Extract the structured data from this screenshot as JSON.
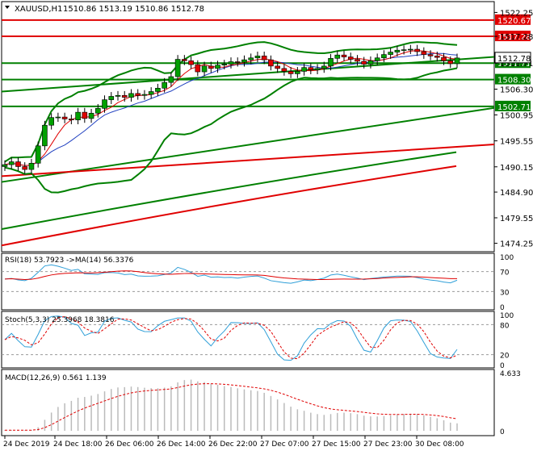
{
  "chart_data": [
    {
      "type": "candlestick",
      "title": "XAUUSD,H1",
      "ohlc_label": "1510.86 1513.19 1510.86 1512.78",
      "ylim": [
        1472.5,
        1524.5
      ],
      "y_ticks": [
        "1522.25",
        "1517.28",
        "1511.71",
        "1506.30",
        "1500.95",
        "1495.55",
        "1490.15",
        "1484.90",
        "1479.55",
        "1474.25"
      ],
      "x_labels": [
        "24 Dec 2019",
        "24 Dec 18:00",
        "26 Dec 06:00",
        "26 Dec 14:00",
        "26 Dec 22:00",
        "27 Dec 07:00",
        "27 Dec 15:00",
        "27 Dec 23:00",
        "30 Dec 08:00"
      ],
      "horizontal_levels": [
        {
          "value": 1520.67,
          "label": "1520.67",
          "color": "#e00000"
        },
        {
          "value": 1517.28,
          "label": "1517.28",
          "color": "#e00000"
        },
        {
          "value": 1511.71,
          "label": "1511.71",
          "color": "#008000"
        },
        {
          "value": 1508.3,
          "label": "1508.30",
          "color": "#008000"
        },
        {
          "value": 1502.71,
          "label": "1502.71",
          "color": "#008000"
        }
      ],
      "current_price": "1512.78",
      "closes": [
        1490.6,
        1491.2,
        1490.2,
        1489.6,
        1490.9,
        1494.5,
        1498.8,
        1500.4,
        1500.5,
        1500.1,
        1499.9,
        1501.5,
        1500.2,
        1501.3,
        1502.3,
        1504.1,
        1504.8,
        1505.0,
        1504.6,
        1505.4,
        1505.0,
        1505.2,
        1505.8,
        1506.5,
        1507.7,
        1508.9,
        1512.5,
        1512.2,
        1511.4,
        1509.9,
        1511.1,
        1510.6,
        1511.3,
        1511.5,
        1512.0,
        1511.9,
        1512.4,
        1512.8,
        1513.2,
        1512.4,
        1511.1,
        1510.6,
        1510.0,
        1509.5,
        1510.0,
        1510.8,
        1510.3,
        1510.6,
        1511.1,
        1512.7,
        1513.4,
        1513.0,
        1512.5,
        1512.1,
        1511.5,
        1512.2,
        1512.8,
        1513.5,
        1514.0,
        1514.4,
        1514.5,
        1514.6,
        1514.1,
        1513.5,
        1513.2,
        1512.9,
        1512.2,
        1511.6,
        1512.78
      ],
      "rsi": {
        "label": "RSI(18) 53.7923 ->MA(14) 56.3376",
        "ticks": [
          "100",
          "70",
          "30",
          "0"
        ]
      },
      "stochastic": {
        "label": "Stoch(5,3,3) 25.3968 18.3816",
        "ticks": [
          "100",
          "80",
          "20",
          "0"
        ]
      },
      "macd": {
        "label": "MACD(12,26,9) 0.561 1.139",
        "ticks": [
          "4.633",
          "0"
        ]
      },
      "colors": {
        "bull": "#00a000",
        "bear": "#e00000",
        "band": "#008000",
        "ma_red": "#e00000",
        "ma_blue": "#2040c0",
        "rsi": "#2f9fd8",
        "signal": "#e00000"
      }
    }
  ]
}
